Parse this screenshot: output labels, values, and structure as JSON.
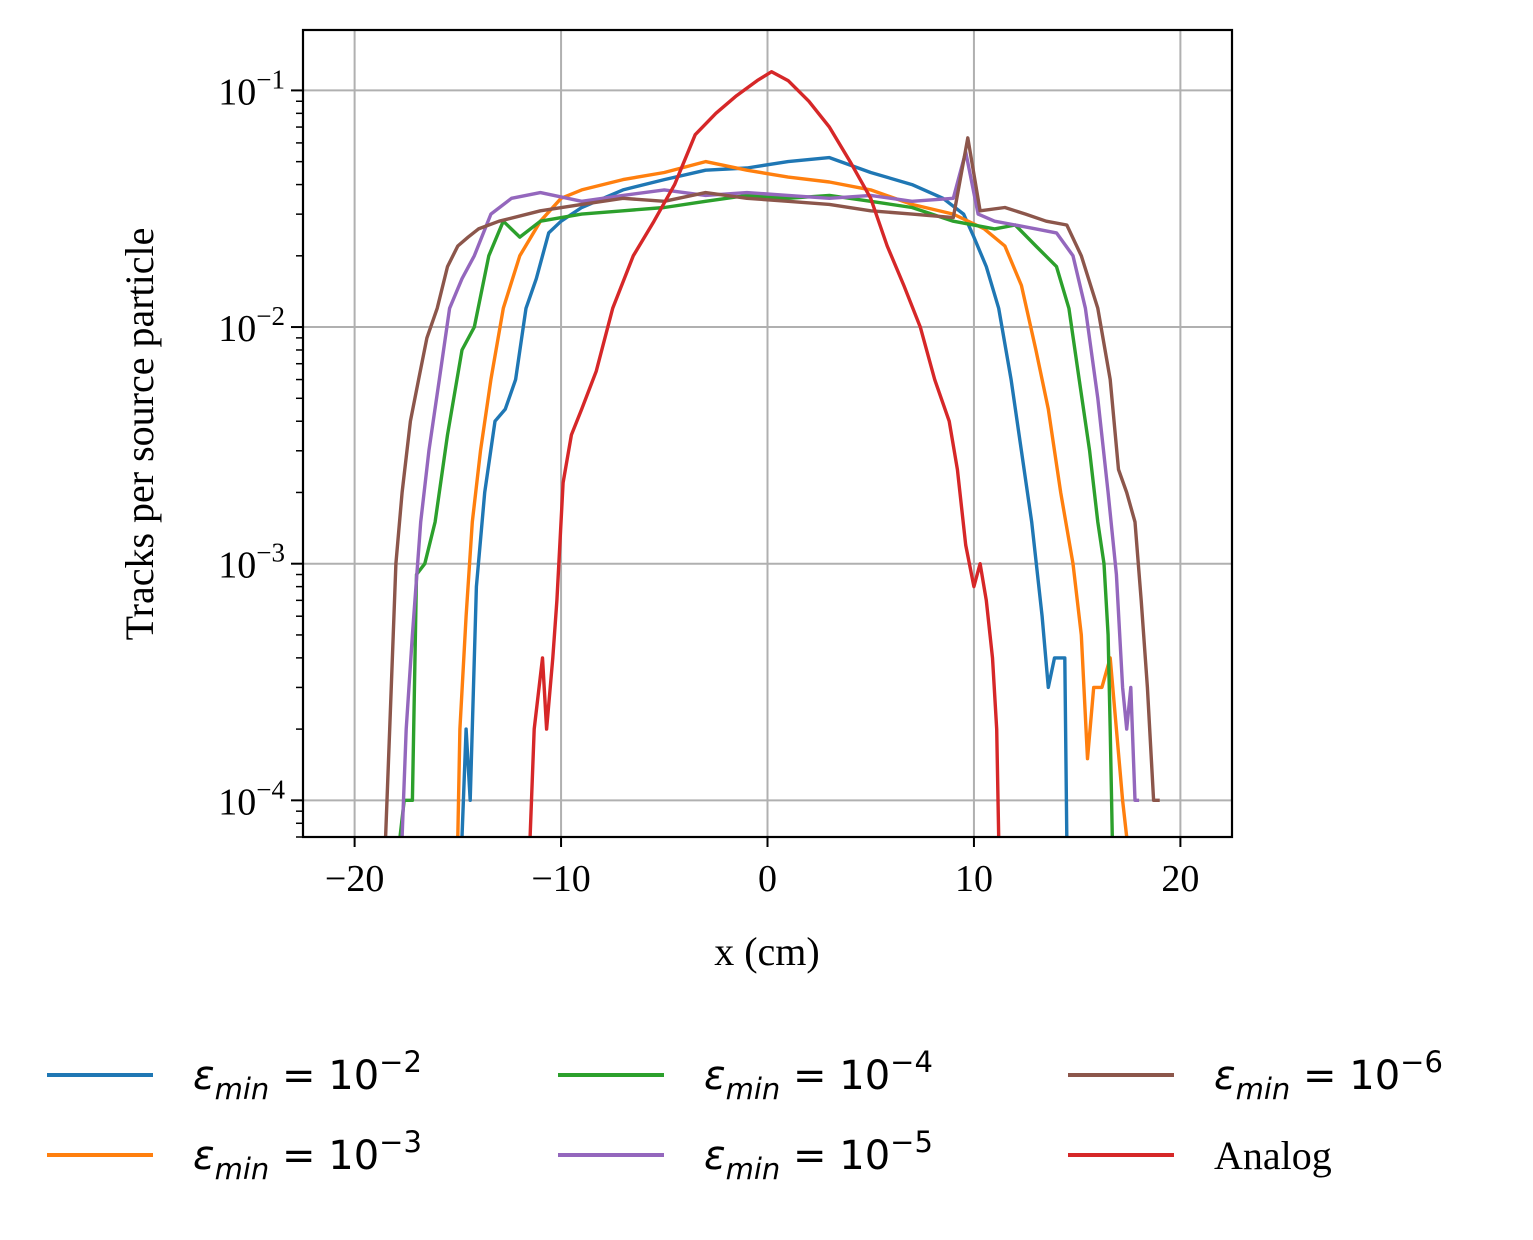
{
  "chart_data": {
    "type": "line",
    "title": "",
    "xlabel": "x (cm)",
    "ylabel": "Tracks per source particle",
    "xlim": [
      -22.5,
      22.5
    ],
    "ylim": [
      7e-05,
      0.18
    ],
    "yscale": "log",
    "grid": true,
    "legend_position": "bottom",
    "x_ticks": [
      {
        "value": -20,
        "label": "−20"
      },
      {
        "value": -10,
        "label": "−10"
      },
      {
        "value": 0,
        "label": "0"
      },
      {
        "value": 10,
        "label": "10"
      },
      {
        "value": 20,
        "label": "20"
      }
    ],
    "y_ticks": [
      {
        "value": 0.0001,
        "base": "10",
        "exp": "−4"
      },
      {
        "value": 0.001,
        "base": "10",
        "exp": "−3"
      },
      {
        "value": 0.01,
        "base": "10",
        "exp": "−2"
      },
      {
        "value": 0.1,
        "base": "10",
        "exp": "−1"
      }
    ],
    "series": [
      {
        "name": "ε_min = 10^-2",
        "legend_base": "10",
        "legend_exp": "−2",
        "legend_math": true,
        "color": "#1f77b4",
        "x": [
          -14.8,
          -14.6,
          -14.4,
          -14.1,
          -13.7,
          -13.2,
          -12.7,
          -12.2,
          -11.7,
          -11.2,
          -10.6,
          -10.0,
          -9.0,
          -7.0,
          -5.0,
          -3.0,
          -1.0,
          1.0,
          3.0,
          5.0,
          7.0,
          8.5,
          9.5,
          10.0,
          10.6,
          11.2,
          11.8,
          12.3,
          12.8,
          13.3,
          13.6,
          13.9,
          14.2,
          14.4,
          14.5
        ],
        "y": [
          7e-05,
          0.0002,
          0.0001,
          0.0008,
          0.002,
          0.004,
          0.0045,
          0.006,
          0.012,
          0.016,
          0.025,
          0.028,
          0.032,
          0.038,
          0.042,
          0.046,
          0.047,
          0.05,
          0.052,
          0.045,
          0.04,
          0.035,
          0.03,
          0.024,
          0.018,
          0.012,
          0.006,
          0.003,
          0.0015,
          0.0006,
          0.0003,
          0.0004,
          0.0004,
          0.0004,
          7e-05
        ]
      },
      {
        "name": "ε_min = 10^-3",
        "legend_base": "10",
        "legend_exp": "−3",
        "legend_math": true,
        "color": "#ff7f0e",
        "x": [
          -15.0,
          -14.9,
          -14.6,
          -14.3,
          -13.9,
          -13.4,
          -12.8,
          -12.0,
          -11.0,
          -10.0,
          -9.0,
          -7.0,
          -5.0,
          -3.0,
          -1.0,
          1.0,
          3.0,
          5.0,
          7.0,
          9.0,
          10.5,
          11.5,
          12.3,
          13.0,
          13.6,
          14.2,
          14.8,
          15.2,
          15.5,
          15.8,
          16.2,
          16.6,
          16.9,
          17.2,
          17.4
        ],
        "y": [
          7e-05,
          0.0002,
          0.0006,
          0.0015,
          0.003,
          0.006,
          0.012,
          0.02,
          0.028,
          0.035,
          0.038,
          0.042,
          0.045,
          0.05,
          0.046,
          0.043,
          0.041,
          0.038,
          0.033,
          0.03,
          0.026,
          0.022,
          0.015,
          0.008,
          0.0045,
          0.002,
          0.001,
          0.0005,
          0.00015,
          0.0003,
          0.0003,
          0.0004,
          0.0002,
          0.0001,
          7e-05
        ]
      },
      {
        "name": "ε_min = 10^-4",
        "legend_base": "10",
        "legend_exp": "−4",
        "legend_math": true,
        "color": "#2ca02c",
        "x": [
          -17.8,
          -17.6,
          -17.2,
          -17.0,
          -16.6,
          -16.1,
          -15.5,
          -14.8,
          -14.2,
          -13.5,
          -12.8,
          -12.0,
          -11.0,
          -9.0,
          -7.0,
          -5.0,
          -3.0,
          -1.0,
          1.0,
          3.0,
          5.0,
          7.0,
          9.0,
          11.0,
          12.0,
          13.0,
          14.0,
          14.6,
          15.1,
          15.6,
          16.0,
          16.3,
          16.5,
          16.6,
          16.7
        ],
        "y": [
          7e-05,
          0.0001,
          0.0001,
          0.0009,
          0.001,
          0.0015,
          0.0035,
          0.008,
          0.01,
          0.02,
          0.028,
          0.024,
          0.028,
          0.03,
          0.031,
          0.032,
          0.034,
          0.036,
          0.035,
          0.036,
          0.034,
          0.032,
          0.028,
          0.026,
          0.027,
          0.022,
          0.018,
          0.012,
          0.006,
          0.003,
          0.0015,
          0.001,
          0.0005,
          0.0002,
          7e-05
        ]
      },
      {
        "name": "ε_min = 10^-5",
        "legend_base": "10",
        "legend_exp": "−5",
        "legend_math": true,
        "color": "#9467bd",
        "x": [
          -17.7,
          -17.5,
          -17.2,
          -16.8,
          -16.4,
          -15.9,
          -15.4,
          -14.8,
          -14.2,
          -13.4,
          -12.4,
          -11.0,
          -9.0,
          -7.0,
          -5.0,
          -3.0,
          -1.0,
          1.0,
          3.0,
          5.0,
          7.0,
          9.0,
          9.6,
          10.2,
          11.0,
          12.0,
          13.0,
          14.0,
          14.8,
          15.4,
          16.0,
          16.5,
          16.9,
          17.2,
          17.4,
          17.6,
          17.8,
          18.0
        ],
        "y": [
          7e-05,
          0.0002,
          0.0005,
          0.0015,
          0.003,
          0.006,
          0.012,
          0.016,
          0.02,
          0.03,
          0.035,
          0.037,
          0.034,
          0.036,
          0.038,
          0.036,
          0.037,
          0.036,
          0.035,
          0.036,
          0.034,
          0.035,
          0.055,
          0.03,
          0.028,
          0.027,
          0.026,
          0.025,
          0.02,
          0.012,
          0.005,
          0.002,
          0.0009,
          0.0003,
          0.0002,
          0.0003,
          0.0001,
          0.0001
        ]
      },
      {
        "name": "ε_min = 10^-6",
        "legend_base": "10",
        "legend_exp": "−6",
        "legend_math": true,
        "color": "#8c564b",
        "x": [
          -18.5,
          -18.3,
          -18.0,
          -17.7,
          -17.3,
          -16.9,
          -16.5,
          -16.0,
          -15.5,
          -15.0,
          -14.5,
          -14.0,
          -13.0,
          -11.0,
          -9.0,
          -7.0,
          -5.0,
          -3.0,
          -1.0,
          1.0,
          3.0,
          5.0,
          7.0,
          9.0,
          9.7,
          10.3,
          11.5,
          12.5,
          13.5,
          14.5,
          15.2,
          16.0,
          16.6,
          17.0,
          17.4,
          17.8,
          18.1,
          18.4,
          18.7,
          19.0
        ],
        "y": [
          7e-05,
          0.0002,
          0.001,
          0.002,
          0.004,
          0.006,
          0.009,
          0.012,
          0.018,
          0.022,
          0.024,
          0.026,
          0.028,
          0.031,
          0.033,
          0.035,
          0.034,
          0.037,
          0.035,
          0.034,
          0.033,
          0.031,
          0.03,
          0.029,
          0.063,
          0.031,
          0.032,
          0.03,
          0.028,
          0.027,
          0.02,
          0.012,
          0.006,
          0.0025,
          0.002,
          0.0015,
          0.0007,
          0.0003,
          0.0001,
          0.0001
        ]
      },
      {
        "name": "Analog",
        "legend_text": "Analog",
        "legend_math": false,
        "color": "#d62728",
        "x": [
          -11.5,
          -11.3,
          -10.9,
          -10.7,
          -10.4,
          -10.2,
          -9.9,
          -9.5,
          -9.0,
          -8.3,
          -7.5,
          -6.5,
          -5.5,
          -4.5,
          -3.5,
          -2.5,
          -1.5,
          -0.5,
          0.2,
          1.0,
          2.0,
          3.0,
          4.0,
          5.0,
          5.8,
          6.6,
          7.4,
          8.1,
          8.8,
          9.2,
          9.6,
          10.0,
          10.3,
          10.6,
          10.9,
          11.1,
          11.2
        ],
        "y": [
          7e-05,
          0.0002,
          0.0004,
          0.0002,
          0.0004,
          0.0007,
          0.0022,
          0.0035,
          0.0045,
          0.0065,
          0.012,
          0.02,
          0.028,
          0.04,
          0.065,
          0.08,
          0.095,
          0.11,
          0.12,
          0.11,
          0.09,
          0.07,
          0.05,
          0.035,
          0.022,
          0.015,
          0.01,
          0.006,
          0.004,
          0.0025,
          0.0012,
          0.0008,
          0.001,
          0.0007,
          0.0004,
          0.0002,
          7e-05
        ]
      }
    ]
  }
}
